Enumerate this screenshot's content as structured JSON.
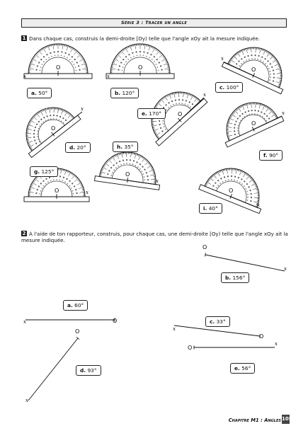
{
  "header": {
    "title": "Série 3 : Tracer un angle"
  },
  "exercise1": {
    "number": "1",
    "instruction": "Dans chaque cas, construis la demi-droite [Oy) telle que l'angle xOy ait la mesure indiquée.",
    "origin_label": "O",
    "ray_label": "x",
    "items": [
      {
        "letter": "a.",
        "measure": "50°"
      },
      {
        "letter": "b.",
        "measure": "120°"
      },
      {
        "letter": "c.",
        "measure": "100°"
      },
      {
        "letter": "d.",
        "measure": "20°"
      },
      {
        "letter": "e.",
        "measure": "170°"
      },
      {
        "letter": "f.",
        "measure": "90°"
      },
      {
        "letter": "g.",
        "measure": "125°"
      },
      {
        "letter": "h.",
        "measure": "35°"
      },
      {
        "letter": "i.",
        "measure": "40°"
      }
    ]
  },
  "exercise2": {
    "number": "2",
    "instruction": "À l'aide de ton rapporteur, construis, pour chaque cas, une demi-droite [Oy) telle que l'angle xOy ait la mesure indiquée.",
    "origin_label": "O",
    "ray_label": "x",
    "items": [
      {
        "letter": "a.",
        "measure": "60°"
      },
      {
        "letter": "b.",
        "measure": "156°"
      },
      {
        "letter": "c.",
        "measure": "33°"
      },
      {
        "letter": "d.",
        "measure": "93°"
      },
      {
        "letter": "e.",
        "measure": "56°"
      }
    ]
  },
  "footer": {
    "chapter": "Chapitre M1 : Angles",
    "page": "105"
  }
}
